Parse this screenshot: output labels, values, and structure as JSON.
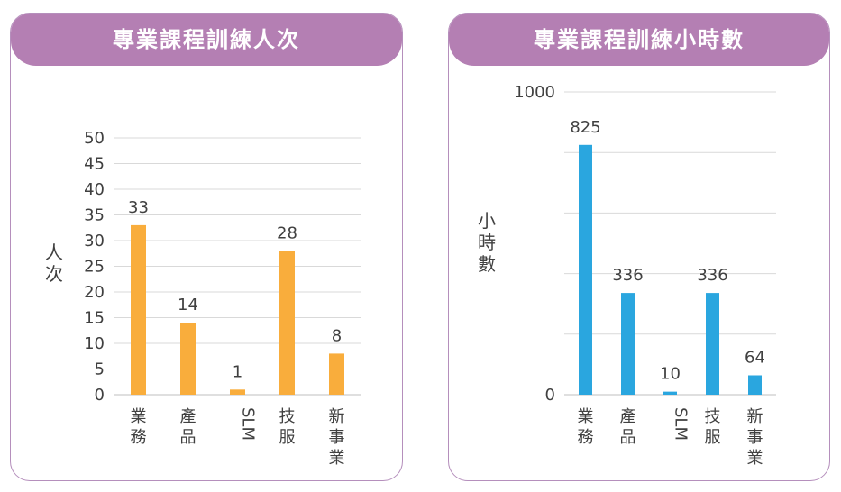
{
  "chart_data": [
    {
      "type": "bar",
      "title": "專業課程訓練人次",
      "ylabel": "人次",
      "categories": [
        "業務",
        "產品",
        "SLM",
        "技服",
        "新事業"
      ],
      "values": [
        33,
        14,
        1,
        28,
        8
      ],
      "ylim": [
        0,
        50
      ],
      "yticks": [
        0,
        5,
        10,
        15,
        20,
        25,
        30,
        35,
        40,
        45,
        50
      ],
      "color": "#f9ad3c",
      "grid": true
    },
    {
      "type": "bar",
      "title": "專業課程訓練小時數",
      "ylabel": "小時數",
      "categories": [
        "業務",
        "產品",
        "SLM",
        "技服",
        "新事業"
      ],
      "values": [
        825,
        336,
        10,
        336,
        64
      ],
      "ylim": [
        0,
        1000
      ],
      "yticks": [
        0,
        1000
      ],
      "gridlines": [
        0,
        200,
        400,
        600,
        800,
        1000
      ],
      "color": "#2aa6df",
      "grid": true
    }
  ]
}
